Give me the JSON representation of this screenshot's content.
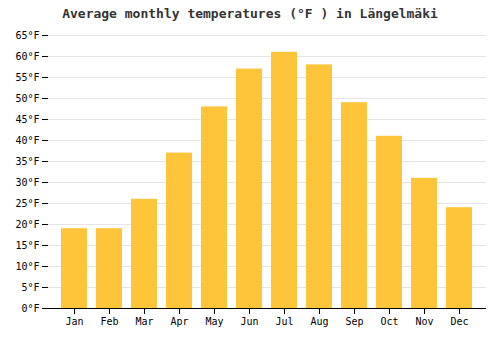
{
  "chart_data": {
    "type": "bar",
    "title": "Average monthly temperatures (°F ) in Längelmäki",
    "categories": [
      "Jan",
      "Feb",
      "Mar",
      "Apr",
      "May",
      "Jun",
      "Jul",
      "Aug",
      "Sep",
      "Oct",
      "Nov",
      "Dec"
    ],
    "values": [
      19,
      19,
      26,
      37,
      48,
      57,
      61,
      58,
      49,
      41,
      31,
      24
    ],
    "color": "#FFC53A",
    "ylim": [
      0,
      65
    ],
    "yticks": [
      {
        "value": 0,
        "label": "0°F"
      },
      {
        "value": 5,
        "label": "5°F"
      },
      {
        "value": 10,
        "label": "10°F"
      },
      {
        "value": 15,
        "label": "15°F"
      },
      {
        "value": 20,
        "label": "20°F"
      },
      {
        "value": 25,
        "label": "25°F"
      },
      {
        "value": 30,
        "label": "30°F"
      },
      {
        "value": 35,
        "label": "35°F"
      },
      {
        "value": 40,
        "label": "40°F"
      },
      {
        "value": 45,
        "label": "45°F"
      },
      {
        "value": 50,
        "label": "50°F"
      },
      {
        "value": 55,
        "label": "55°F"
      },
      {
        "value": 60,
        "label": "60°F"
      },
      {
        "value": 65,
        "label": "65°F"
      }
    ],
    "grid": true
  }
}
